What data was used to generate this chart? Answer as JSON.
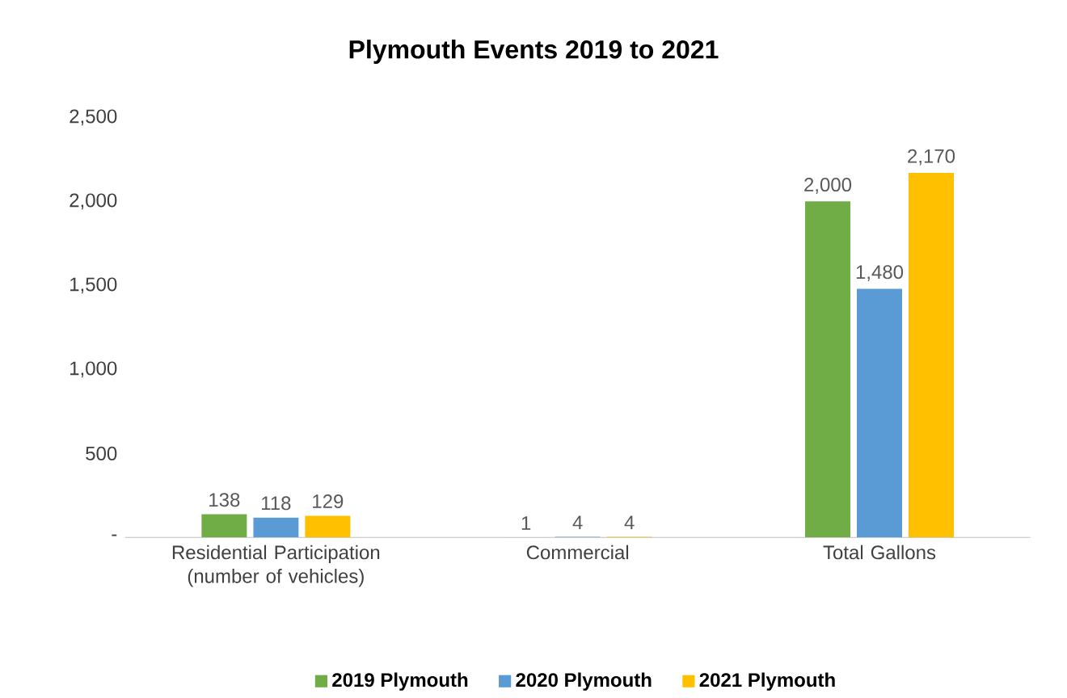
{
  "chart_data": {
    "type": "bar",
    "title": "Plymouth Events 2019 to 2021",
    "categories": [
      "Residential Participation (number of vehicles)",
      "Commercial",
      "Total Gallons"
    ],
    "series": [
      {
        "name": "2019 Plymouth",
        "color": "#70ad47",
        "values": [
          138,
          1,
          2000
        ],
        "value_labels": [
          "138",
          "1",
          "2,000"
        ]
      },
      {
        "name": "2020 Plymouth",
        "color": "#5b9bd5",
        "values": [
          118,
          4,
          1480
        ],
        "value_labels": [
          "118",
          "4",
          "1,480"
        ]
      },
      {
        "name": "2021 Plymouth",
        "color": "#ffc000",
        "values": [
          129,
          4,
          2170
        ],
        "value_labels": [
          "129",
          "4",
          "2,170"
        ]
      }
    ],
    "ylim": [
      0,
      2500
    ],
    "yticks": [
      {
        "value": 0,
        "label": "-"
      },
      500,
      {
        "value": 1000,
        "label": "1,000"
      },
      {
        "value": 1500,
        "label": "1,500"
      },
      {
        "value": 2000,
        "label": "2,000"
      },
      {
        "value": 2500,
        "label": "2,500"
      }
    ],
    "legend": "bottom"
  }
}
